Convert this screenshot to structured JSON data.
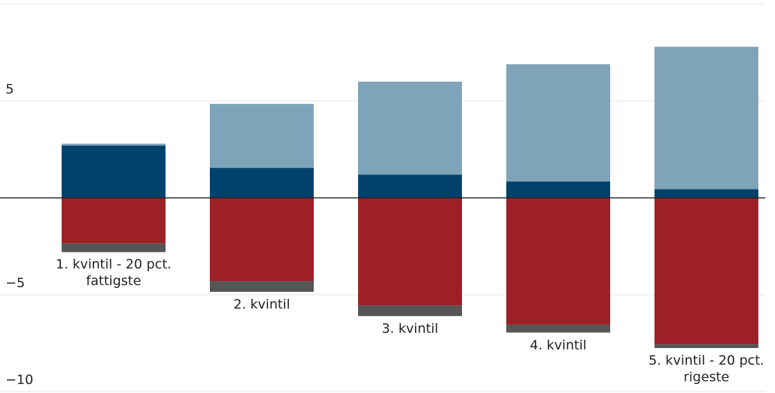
{
  "chart_data": {
    "type": "bar",
    "stacked": true,
    "categories": [
      "1. kvintil - 20 pct. fattigste",
      "2. kvintil",
      "3. kvintil",
      "4. kvintil",
      "5. kvintil - 20 pct. rigeste"
    ],
    "series": [
      {
        "color": "#00426b",
        "values": [
          2.7,
          1.55,
          1.2,
          0.85,
          0.45
        ]
      },
      {
        "color": "#7fa3b8",
        "values": [
          0.1,
          3.3,
          4.8,
          6.05,
          7.35
        ]
      },
      {
        "color": "#9e2027",
        "values": [
          -2.35,
          -4.3,
          -5.55,
          -6.55,
          -7.55
        ]
      },
      {
        "color": "#555555",
        "values": [
          -0.45,
          -0.55,
          -0.55,
          -0.4,
          -0.2
        ]
      }
    ],
    "ylim": [
      -10,
      10
    ],
    "yticks": [
      {
        "value": -10,
        "label": "−10"
      },
      {
        "value": -5,
        "label": "−5"
      },
      5
    ],
    "grid": true
  }
}
